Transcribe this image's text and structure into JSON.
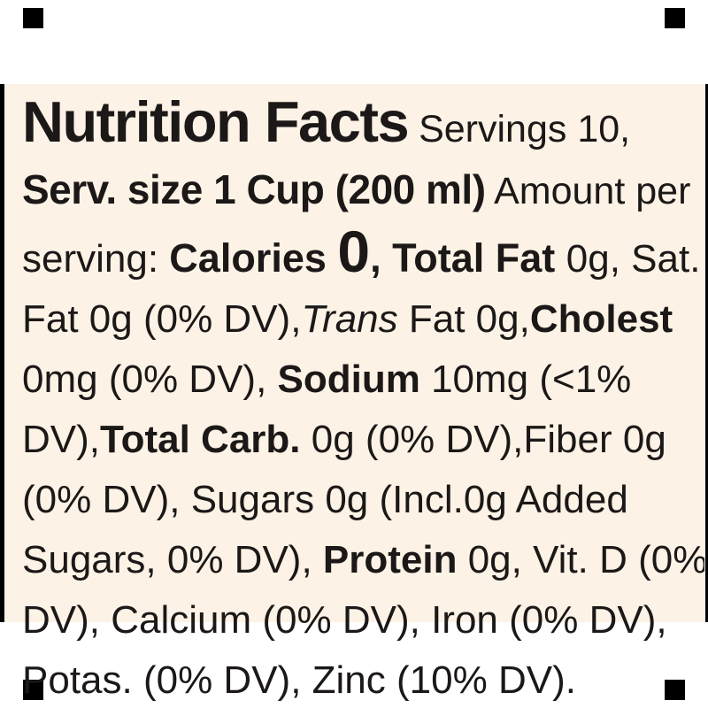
{
  "page": {
    "background": "#ffffff",
    "corner_mark_color": "#000000"
  },
  "label": {
    "background": "#fcf2e6",
    "text_color": "#1b1817",
    "edge_bar_color": "#000000",
    "title": "Nutrition Facts",
    "servings": "10",
    "serving_size": "1 Cup (200 ml)",
    "lines": [
      {
        "runs": [
          {
            "t": "Nutrition Facts",
            "s": "title"
          },
          {
            "t": " Servings 10,",
            "s": "reg-lg"
          }
        ]
      },
      {
        "runs": [
          {
            "t": "Serv. size 1 Cup (200 ml)",
            "s": "big-bold"
          },
          {
            "t": " Amount per",
            "s": "reg-lg"
          }
        ]
      },
      {
        "runs": [
          {
            "t": "serving: ",
            "s": "reg"
          },
          {
            "t": "Calories ",
            "s": "bold-cal"
          },
          {
            "t": "0",
            "s": "huge"
          },
          {
            "t": ", Total Fat ",
            "s": "bold-cal"
          },
          {
            "t": "0g, Sat.",
            "s": "reg"
          }
        ]
      },
      {
        "runs": [
          {
            "t": "Fat 0g (0% DV),",
            "s": "reg"
          },
          {
            "t": "Trans",
            "s": "italic"
          },
          {
            "t": " Fat 0g,",
            "s": "reg"
          },
          {
            "t": "Cholest",
            "s": "bold"
          }
        ]
      },
      {
        "runs": [
          {
            "t": "0mg (0% DV), ",
            "s": "reg"
          },
          {
            "t": "Sodium",
            "s": "bold"
          },
          {
            "t": " 10mg (<1%",
            "s": "reg"
          }
        ]
      },
      {
        "runs": [
          {
            "t": "DV),",
            "s": "reg"
          },
          {
            "t": "Total Carb.",
            "s": "bold"
          },
          {
            "t": " 0g (0% DV),Fiber 0g",
            "s": "reg"
          }
        ]
      },
      {
        "runs": [
          {
            "t": "(0% DV), Sugars 0g (Incl.0g Added",
            "s": "reg"
          }
        ]
      },
      {
        "runs": [
          {
            "t": "Sugars, 0% DV), ",
            "s": "reg"
          },
          {
            "t": "Protein",
            "s": "bold"
          },
          {
            "t": " 0g, Vit. D (0%",
            "s": "reg"
          }
        ]
      },
      {
        "runs": [
          {
            "t": "DV), Calcium (0% DV), Iron (0% DV),",
            "s": "reg"
          }
        ]
      },
      {
        "runs": [
          {
            "t": "Potas. (0% DV), Zinc (10% DV).",
            "s": "reg"
          }
        ]
      }
    ]
  }
}
